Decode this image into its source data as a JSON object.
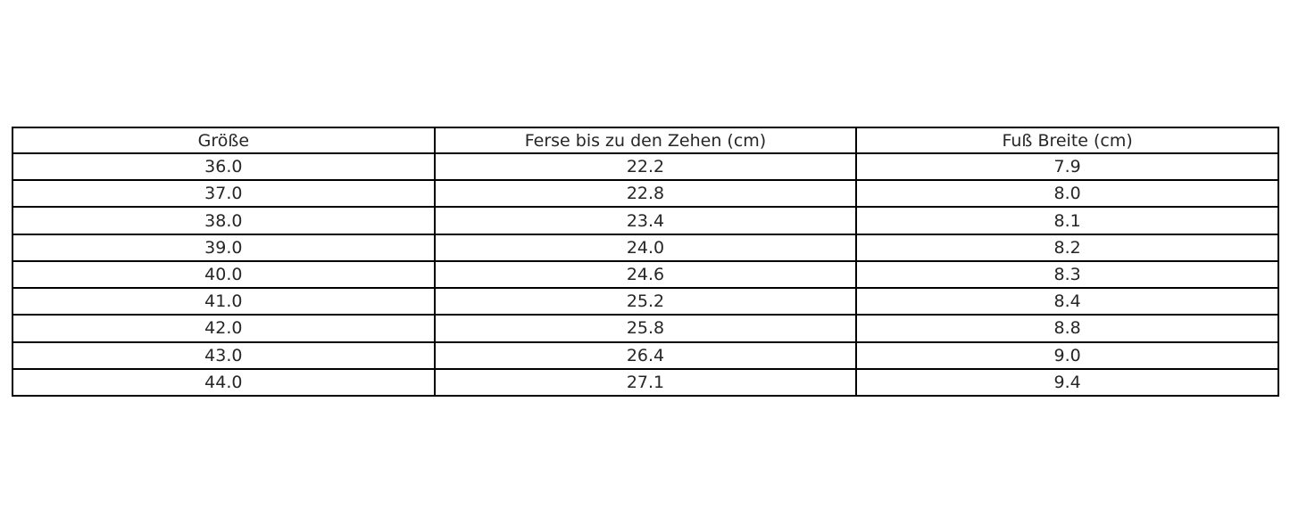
{
  "table": {
    "columns": [
      "Größe",
      "Ferse bis zu den Zehen (cm)",
      "Fuß Breite (cm)"
    ],
    "rows": [
      [
        "36.0",
        "22.2",
        "7.9"
      ],
      [
        "37.0",
        "22.8",
        "8.0"
      ],
      [
        "38.0",
        "23.4",
        "8.1"
      ],
      [
        "39.0",
        "24.0",
        "8.2"
      ],
      [
        "40.0",
        "24.6",
        "8.3"
      ],
      [
        "41.0",
        "25.2",
        "8.4"
      ],
      [
        "42.0",
        "25.8",
        "8.8"
      ],
      [
        "43.0",
        "26.4",
        "9.0"
      ],
      [
        "44.0",
        "27.1",
        "9.4"
      ]
    ]
  },
  "chart_data": {
    "type": "table",
    "title": "",
    "columns": [
      "Größe",
      "Ferse bis zu den Zehen (cm)",
      "Fuß Breite (cm)"
    ],
    "rows": [
      [
        36.0,
        22.2,
        7.9
      ],
      [
        37.0,
        22.8,
        8.0
      ],
      [
        38.0,
        23.4,
        8.1
      ],
      [
        39.0,
        24.0,
        8.2
      ],
      [
        40.0,
        24.6,
        8.3
      ],
      [
        41.0,
        25.2,
        8.4
      ],
      [
        42.0,
        25.8,
        8.8
      ],
      [
        43.0,
        26.4,
        9.0
      ],
      [
        44.0,
        27.1,
        9.4
      ]
    ],
    "layout": {
      "grid": true,
      "border_color": "#000000",
      "text_color": "#262626",
      "background": "#ffffff",
      "cell_alignment": "center"
    }
  }
}
